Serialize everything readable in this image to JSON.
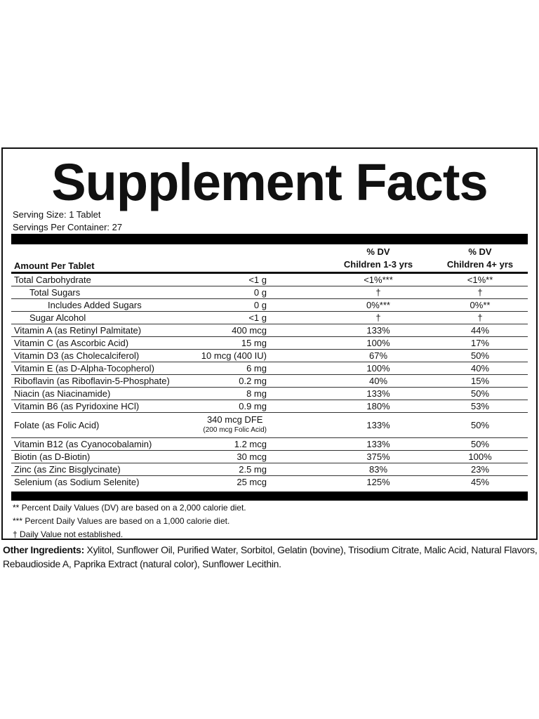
{
  "title": "Supplement Facts",
  "serving_size": "Serving Size: 1 Tablet",
  "servings_per_container": "Servings Per Container: 27",
  "header": {
    "amount_label": "Amount Per Tablet",
    "col3_line1": "% DV",
    "col3_line2": "Children 1-3 yrs",
    "col4_line1": "% DV",
    "col4_line2": "Children 4+ yrs"
  },
  "rows": [
    {
      "name": "Total Carbohydrate",
      "amount": "<1 g",
      "dv1": "<1%***",
      "dv2": "<1%**",
      "indent": 0
    },
    {
      "name": "Total Sugars",
      "amount": "0 g",
      "dv1": "†",
      "dv2": "†",
      "indent": 1
    },
    {
      "name": "Includes Added Sugars",
      "amount": "0 g",
      "dv1": "0%***",
      "dv2": "0%**",
      "indent": 2
    },
    {
      "name": "Sugar Alcohol",
      "amount": "<1 g",
      "dv1": "†",
      "dv2": "†",
      "indent": 1
    },
    {
      "name": "Vitamin A (as Retinyl Palmitate)",
      "amount": "400 mcg",
      "dv1": "133%",
      "dv2": "44%"
    },
    {
      "name": "Vitamin C (as Ascorbic Acid)",
      "amount": "15 mg",
      "dv1": "100%",
      "dv2": "17%"
    },
    {
      "name": "Vitamin D3 (as Cholecalciferol)",
      "amount": "10 mcg  (400 IU)",
      "dv1": "67%",
      "dv2": "50%"
    },
    {
      "name": "Vitamin E (as D-Alpha-Tocopherol)",
      "amount": "6 mg",
      "dv1": "100%",
      "dv2": "40%"
    },
    {
      "name": "Riboflavin (as Riboflavin-5-Phosphate)",
      "amount": "0.2 mg",
      "dv1": "40%",
      "dv2": "15%"
    },
    {
      "name": "Niacin (as Niacinamide)",
      "amount": "8 mg",
      "dv1": "133%",
      "dv2": "50%"
    },
    {
      "name": "Vitamin B6 (as Pyridoxine HCl)",
      "amount": "0.9 mg",
      "dv1": "180%",
      "dv2": "53%"
    },
    {
      "name": "Folate (as Folic Acid)",
      "amount": "340 mcg  DFE",
      "amount_sub": "(200 mcg Folic Acid)",
      "dv1": "133%",
      "dv2": "50%"
    },
    {
      "name": "Vitamin B12 (as Cyanocobalamin)",
      "amount": "1.2 mcg",
      "dv1": "133%",
      "dv2": "50%"
    },
    {
      "name": "Biotin (as D-Biotin)",
      "amount": "30 mcg",
      "dv1": "375%",
      "dv2": "100%"
    },
    {
      "name": "Zinc (as Zinc Bisglycinate)",
      "amount": "2.5 mg",
      "dv1": "83%",
      "dv2": "23%"
    },
    {
      "name": "Selenium (as Sodium Selenite)",
      "amount": "25 mcg",
      "dv1": "125%",
      "dv2": "45%"
    }
  ],
  "footnotes": [
    "** Percent Daily Values (DV) are based on a 2,000 calorie diet.",
    "*** Percent Daily Values are based on a 1,000 calorie diet.",
    "† Daily Value not established."
  ],
  "other_ingredients": {
    "label": "Other Ingredients:",
    "text": " Xylitol, Sunflower Oil, Purified Water, Sorbitol, Gelatin (bovine), Trisodium Citrate, Malic Acid, Natural Flavors, Rebaudioside A, Paprika Extract (natural color), Sunflower Lecithin."
  }
}
